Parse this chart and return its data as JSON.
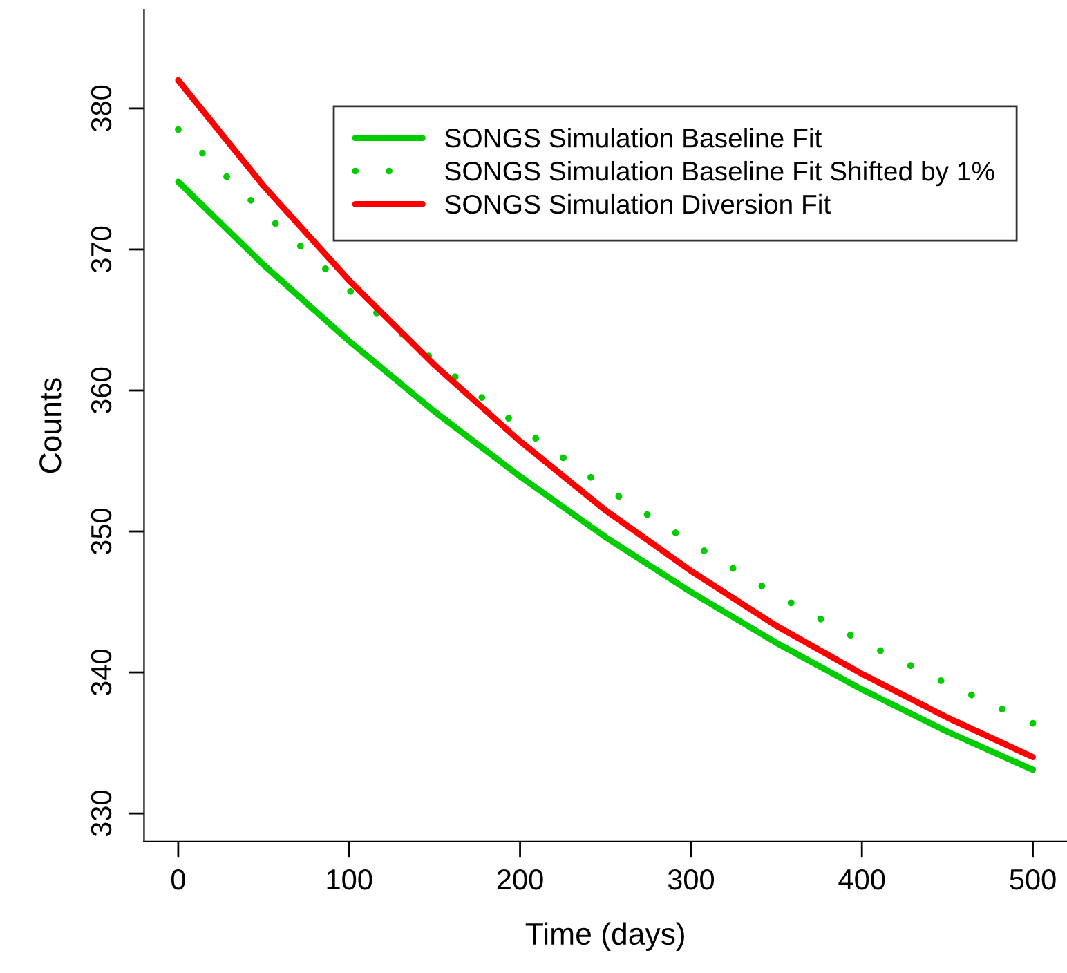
{
  "chart_data": {
    "type": "line",
    "xlabel": "Time (days)",
    "ylabel": "Counts",
    "x": [
      0,
      50,
      100,
      150,
      200,
      250,
      300,
      350,
      400,
      450,
      500
    ],
    "series": [
      {
        "name": "SONGS Simulation Baseline Fit",
        "color": "#00cc00",
        "line_style": "solid",
        "values": [
          374.8,
          368.9,
          363.5,
          358.5,
          353.9,
          349.6,
          345.7,
          342.1,
          338.8,
          335.8,
          333.1
        ]
      },
      {
        "name": "SONGS Simulation Baseline Fit Shifted by 1%",
        "color": "#00cc00",
        "line_style": "dotted",
        "values": [
          378.5,
          372.6,
          367.1,
          362.1,
          357.4,
          353.1,
          349.2,
          345.5,
          342.2,
          339.2,
          336.4
        ]
      },
      {
        "name": "SONGS Simulation Diversion Fit",
        "color": "#ff0000",
        "line_style": "solid",
        "values": [
          382.0,
          374.5,
          367.8,
          361.8,
          356.4,
          351.5,
          347.2,
          343.3,
          339.9,
          336.8,
          334.0
        ]
      }
    ],
    "xlim": [
      -20,
      520
    ],
    "ylim": [
      328,
      387
    ],
    "xticks": [
      0,
      100,
      200,
      300,
      400,
      500
    ],
    "yticks": [
      330,
      340,
      350,
      360,
      370,
      380
    ],
    "grid": false,
    "legend": "top right",
    "marker": "none"
  }
}
